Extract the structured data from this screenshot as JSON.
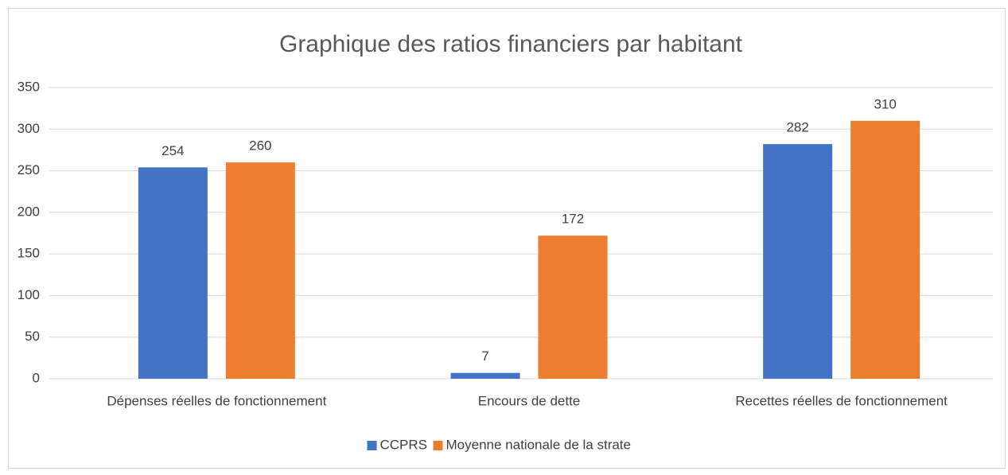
{
  "chart_data": {
    "type": "bar",
    "title": "Graphique des ratios financiers par habitant",
    "categories": [
      "Dépenses réelles de fonctionnement",
      "Encours de dette",
      "Recettes réelles de fonctionnement"
    ],
    "series": [
      {
        "name": "CCPRS",
        "color": "#4472c4",
        "values": [
          254,
          7,
          282
        ]
      },
      {
        "name": "Moyenne nationale de la strate",
        "color": "#ed7d31",
        "values": [
          260,
          172,
          310
        ]
      }
    ],
    "ylim": [
      0,
      350
    ],
    "yticks": [
      0,
      50,
      100,
      150,
      200,
      250,
      300,
      350
    ],
    "grid": true,
    "legend": "bottom"
  }
}
